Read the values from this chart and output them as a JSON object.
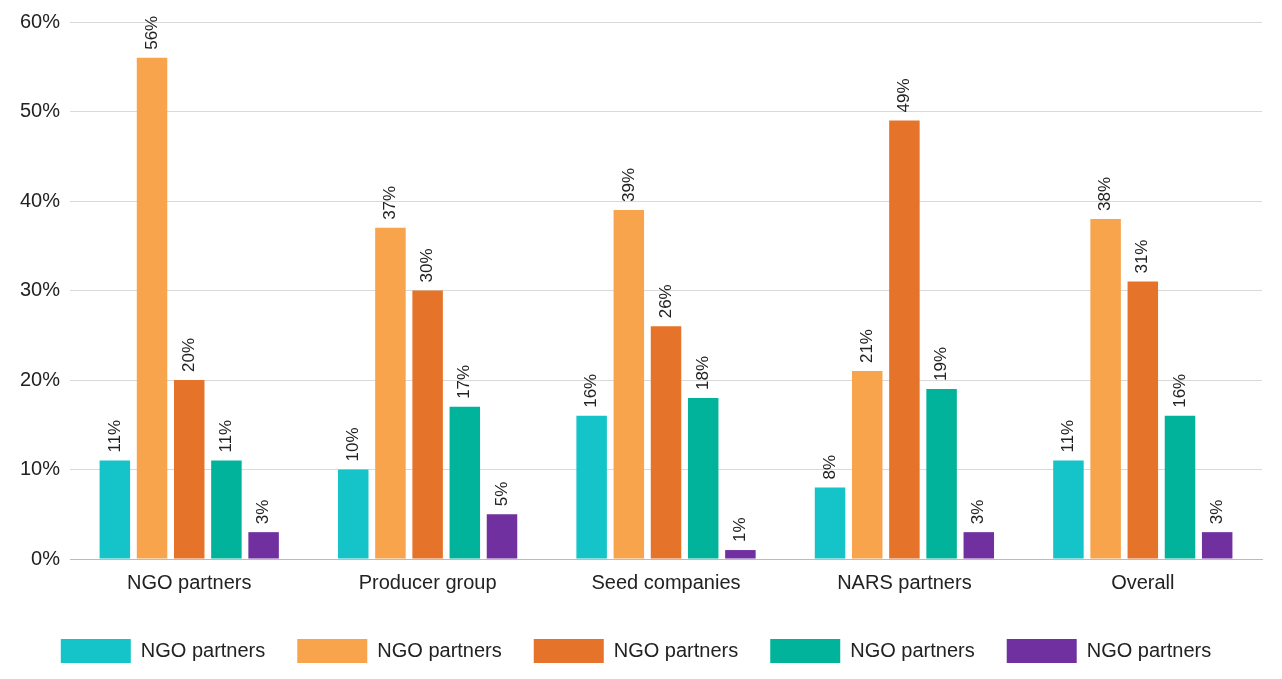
{
  "chart_data": {
    "type": "bar",
    "categories": [
      "NGO partners",
      "Producer group",
      "Seed companies",
      "NARS partners",
      "Overall"
    ],
    "series": [
      {
        "name": "NGO partners",
        "color": "#14c4c8",
        "values": [
          11,
          10,
          16,
          8,
          11
        ],
        "value_labels": [
          "11%",
          "10%",
          "16%",
          "8%",
          "11%"
        ]
      },
      {
        "name": "NGO partners",
        "color": "#f8a44c",
        "values": [
          56,
          37,
          39,
          21,
          38
        ],
        "value_labels": [
          "56%",
          "37%",
          "39%",
          "21%",
          "38%"
        ]
      },
      {
        "name": "NGO partners",
        "color": "#e5742a",
        "values": [
          20,
          30,
          26,
          49,
          31
        ],
        "value_labels": [
          "20%",
          "30%",
          "26%",
          "49%",
          "31%"
        ]
      },
      {
        "name": "NGO partners",
        "color": "#00b39a",
        "values": [
          11,
          17,
          18,
          19,
          16
        ],
        "value_labels": [
          "11%",
          "17%",
          "18%",
          "19%",
          "16%"
        ]
      },
      {
        "name": "NGO partners",
        "color": "#7030a0",
        "values": [
          3,
          5,
          1,
          3,
          3
        ],
        "value_labels": [
          "3%",
          "5%",
          "1%",
          "3%",
          "3%"
        ]
      }
    ],
    "ylim": [
      0,
      60
    ],
    "yticks": [
      {
        "value": 0,
        "label": "0%"
      },
      {
        "value": 10,
        "label": "10%"
      },
      {
        "value": 20,
        "label": "20%"
      },
      {
        "value": 30,
        "label": "30%"
      },
      {
        "value": 40,
        "label": "40%"
      },
      {
        "value": 50,
        "label": "50%"
      },
      {
        "value": 60,
        "label": "60%"
      }
    ],
    "grid": "y",
    "legend": "bottom"
  }
}
